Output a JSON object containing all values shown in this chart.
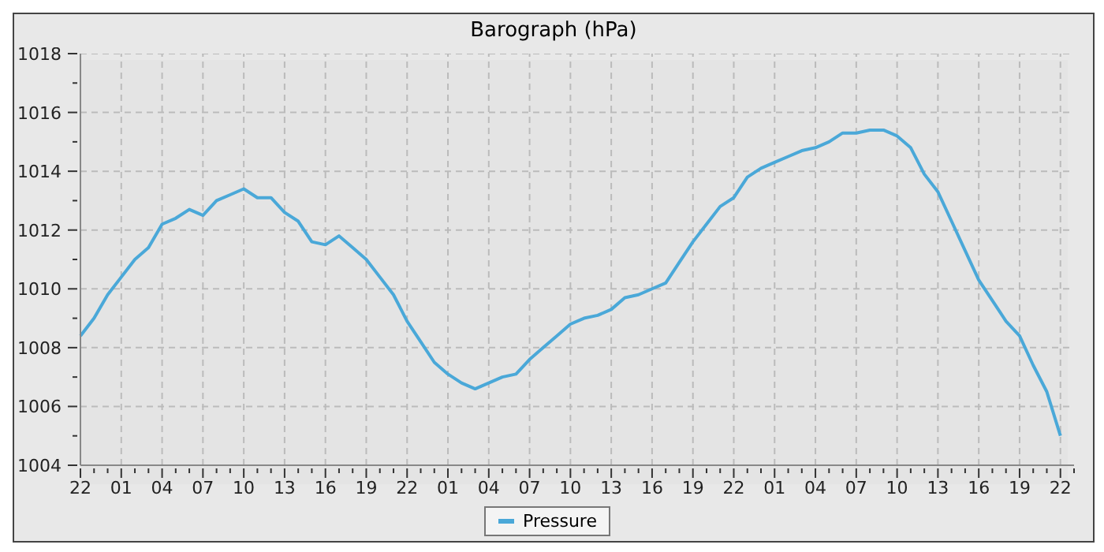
{
  "chart_data": {
    "type": "line",
    "title": "Barograph (hPa)",
    "legend": "bottom",
    "grid": true,
    "line_style": "solid",
    "marker": "none",
    "categories": [
      "22",
      null,
      null,
      "01",
      null,
      null,
      "04",
      null,
      null,
      "07",
      null,
      null,
      "10",
      null,
      null,
      "13",
      null,
      null,
      "16",
      null,
      null,
      "19",
      null,
      null,
      "22",
      null,
      null,
      "01",
      null,
      null,
      "04",
      null,
      null,
      "07",
      null,
      null,
      "10",
      null,
      null,
      "13",
      null,
      null,
      "16",
      null,
      null,
      "19",
      null,
      null,
      "22",
      null,
      null,
      "01",
      null,
      null,
      "04",
      null,
      null,
      "07",
      null,
      null,
      "10",
      null,
      null,
      "13",
      null,
      null,
      "16",
      null,
      null,
      "19",
      null,
      null,
      "22",
      null
    ],
    "ylim": [
      1004,
      1018
    ],
    "yticks": [
      1004,
      {
        "value": 1005,
        "label": null
      },
      1006,
      {
        "value": 1007,
        "label": null
      },
      1008,
      {
        "value": 1009,
        "label": null
      },
      1010,
      {
        "value": 1011,
        "label": null
      },
      1012,
      {
        "value": 1013,
        "label": null
      },
      1014,
      {
        "value": 1015,
        "label": null
      },
      1016,
      {
        "value": 1017,
        "label": null
      },
      1018
    ],
    "series": [
      {
        "name": "Pressure",
        "color": "#4aa8d8",
        "values": [
          1008.4,
          1009.0,
          1009.8,
          1010.4,
          1011.0,
          1011.4,
          1012.2,
          1012.4,
          1012.7,
          1012.5,
          1013.0,
          1013.2,
          1013.4,
          1013.1,
          1013.1,
          1012.6,
          1012.3,
          1011.6,
          1011.5,
          1011.8,
          1011.4,
          1011.0,
          1010.4,
          1009.8,
          1008.9,
          1008.2,
          1007.5,
          1007.1,
          1006.8,
          1006.6,
          1006.8,
          1007.0,
          1007.1,
          1007.6,
          1008.0,
          1008.4,
          1008.8,
          1009.0,
          1009.1,
          1009.3,
          1009.7,
          1009.8,
          1010.0,
          1010.2,
          1010.9,
          1011.6,
          1012.2,
          1012.8,
          1013.1,
          1013.8,
          1014.1,
          1014.3,
          1014.5,
          1014.7,
          1014.8,
          1015.0,
          1015.3,
          1015.3,
          1015.4,
          1015.4,
          1015.2,
          1014.8,
          1013.9,
          1013.3,
          1012.3,
          1011.3,
          1010.3,
          1009.6,
          1008.9,
          1008.4,
          1007.4,
          1006.5,
          1005.0,
          null
        ]
      }
    ]
  }
}
